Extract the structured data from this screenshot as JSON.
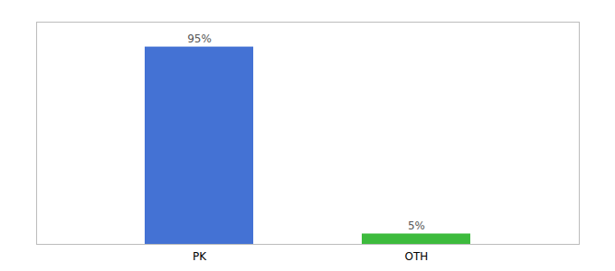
{
  "chart_data": {
    "type": "bar",
    "categories": [
      "PK",
      "OTH"
    ],
    "values": [
      95,
      5
    ],
    "value_labels": [
      "95%",
      "5%"
    ],
    "colors": [
      "#4472d4",
      "#3dbb3d"
    ],
    "ylim": [
      0,
      107
    ],
    "data_labels": true,
    "tick_labels": "x"
  }
}
